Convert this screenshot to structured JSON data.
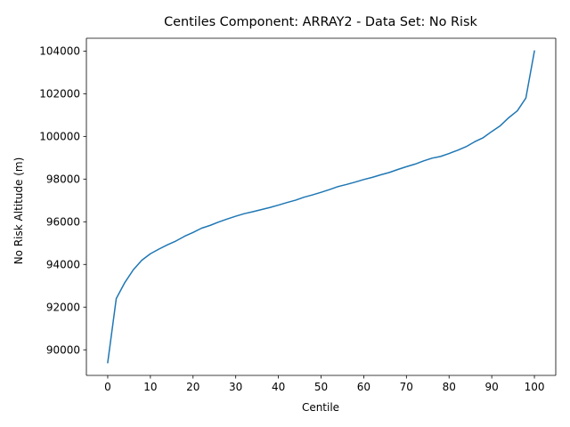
{
  "chart_data": {
    "type": "line",
    "title": "Centiles Component: ARRAY2 - Data Set: No Risk",
    "xlabel": "Centile",
    "ylabel": "No Risk Altitude (m)",
    "xlim": [
      -5,
      105
    ],
    "ylim": [
      88800,
      104600
    ],
    "grid": false,
    "line_color": "#1f77b4",
    "x_ticks": [
      0,
      10,
      20,
      30,
      40,
      50,
      60,
      70,
      80,
      90,
      100
    ],
    "x_tick_labels": [
      "0",
      "10",
      "20",
      "30",
      "40",
      "50",
      "60",
      "70",
      "80",
      "90",
      "100"
    ],
    "y_ticks": [
      90000,
      92000,
      94000,
      96000,
      98000,
      100000,
      102000,
      104000
    ],
    "y_tick_labels": [
      "90000",
      "92000",
      "94000",
      "96000",
      "98000",
      "100000",
      "102000",
      "104000"
    ],
    "series": [
      {
        "x": [
          0,
          2,
          4,
          6,
          8,
          10,
          12,
          14,
          16,
          18,
          20,
          22,
          24,
          26,
          28,
          30,
          32,
          34,
          36,
          38,
          40,
          42,
          44,
          46,
          48,
          50,
          52,
          54,
          56,
          58,
          60,
          62,
          64,
          66,
          68,
          70,
          72,
          74,
          76,
          78,
          80,
          82,
          84,
          86,
          88,
          90,
          92,
          94,
          96,
          98,
          100
        ],
        "y": [
          89400,
          92400,
          93150,
          93750,
          94200,
          94500,
          94720,
          94920,
          95100,
          95320,
          95500,
          95700,
          95830,
          95990,
          96130,
          96260,
          96380,
          96470,
          96570,
          96670,
          96780,
          96900,
          97010,
          97150,
          97260,
          97380,
          97510,
          97650,
          97750,
          97860,
          97980,
          98080,
          98200,
          98310,
          98450,
          98580,
          98700,
          98850,
          98980,
          99060,
          99200,
          99350,
          99520,
          99750,
          99940,
          100230,
          100500,
          100880,
          101200,
          101800,
          104000
        ]
      }
    ]
  }
}
